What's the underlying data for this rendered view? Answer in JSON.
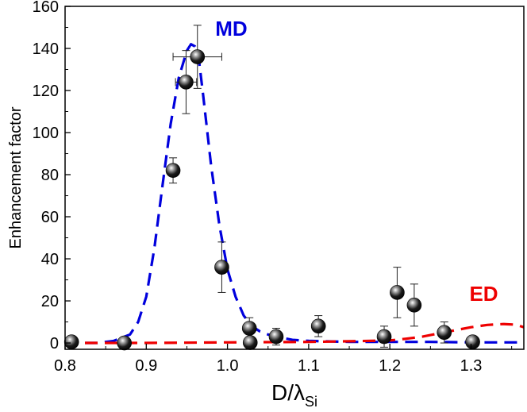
{
  "chart_data": {
    "type": "scatter",
    "title": "",
    "xlabel": {
      "main": "D/λ",
      "sub": "Si"
    },
    "ylabel": "Enhancement factor",
    "xlim": [
      0.8,
      1.365
    ],
    "ylim": [
      -3,
      160
    ],
    "xticks": [
      0.8,
      0.9,
      1.0,
      1.1,
      1.2,
      1.3
    ],
    "xtick_labels": [
      "0.8",
      "0.9",
      "1.0",
      "1.1",
      "1.2",
      "1.3"
    ],
    "yticks": [
      0,
      20,
      40,
      60,
      80,
      100,
      120,
      140,
      160
    ],
    "ytick_labels": [
      "0",
      "20",
      "40",
      "60",
      "80",
      "100",
      "120",
      "140",
      "160"
    ],
    "grid": false,
    "series": [
      {
        "kind": "points",
        "color": "#000000",
        "points": [
          {
            "x": 0.808,
            "y": 0.5,
            "yerr": 0
          },
          {
            "x": 0.873,
            "y": 0,
            "yerr": 0
          },
          {
            "x": 0.933,
            "y": 82,
            "yerr": 6
          },
          {
            "x": 0.949,
            "y": 124,
            "yerr": 15,
            "xerr": 0.013
          },
          {
            "x": 0.963,
            "y": 136,
            "yerr": 15,
            "xerr": 0.03
          },
          {
            "x": 0.993,
            "y": 36,
            "yerr": 12
          },
          {
            "x": 1.027,
            "y": 7,
            "yerr": 5
          },
          {
            "x": 1.028,
            "y": 0.2,
            "yerr": 0
          },
          {
            "x": 1.06,
            "y": 3,
            "yerr": 4
          },
          {
            "x": 1.112,
            "y": 8,
            "yerr": 5
          },
          {
            "x": 1.193,
            "y": 3,
            "yerr": 5
          },
          {
            "x": 1.209,
            "y": 24,
            "yerr": 12
          },
          {
            "x": 1.23,
            "y": 18,
            "yerr": 10
          },
          {
            "x": 1.267,
            "y": 5,
            "yerr": 5
          },
          {
            "x": 1.302,
            "y": 0.5,
            "yerr": 0
          }
        ]
      },
      {
        "kind": "line",
        "color": "#0000dd",
        "style": "dashed",
        "x": [
          0.8,
          0.82,
          0.84,
          0.86,
          0.88,
          0.89,
          0.9,
          0.91,
          0.92,
          0.93,
          0.94,
          0.95,
          0.955,
          0.96,
          0.965,
          0.97,
          0.98,
          0.99,
          1.0,
          1.01,
          1.02,
          1.03,
          1.04,
          1.05,
          1.06,
          1.08,
          1.1,
          1.15,
          1.2,
          1.25,
          1.3,
          1.365
        ],
        "y": [
          0,
          0,
          0,
          1,
          4,
          10,
          22,
          45,
          75,
          104,
          126,
          139,
          142,
          141,
          134,
          118,
          84,
          56,
          35,
          22,
          13,
          8,
          5.5,
          4,
          3,
          1.5,
          1,
          0.5,
          0.5,
          0.5,
          0.3,
          0.3
        ]
      },
      {
        "kind": "line",
        "color": "#ee0000",
        "style": "dashed",
        "x": [
          0.8,
          0.9,
          1.0,
          1.1,
          1.15,
          1.2,
          1.22,
          1.24,
          1.26,
          1.28,
          1.3,
          1.32,
          1.34,
          1.355,
          1.365
        ],
        "y": [
          0,
          0,
          0.3,
          0.5,
          0.8,
          1.2,
          2,
          3,
          4.5,
          6,
          7.5,
          8.6,
          9,
          8.7,
          7.5
        ]
      }
    ],
    "annotations": [
      {
        "text": "MD",
        "x": 0.985,
        "y": 146,
        "color": "#0000dd"
      },
      {
        "text": "ED",
        "x": 1.298,
        "y": 20,
        "color": "#ee0000"
      }
    ]
  }
}
